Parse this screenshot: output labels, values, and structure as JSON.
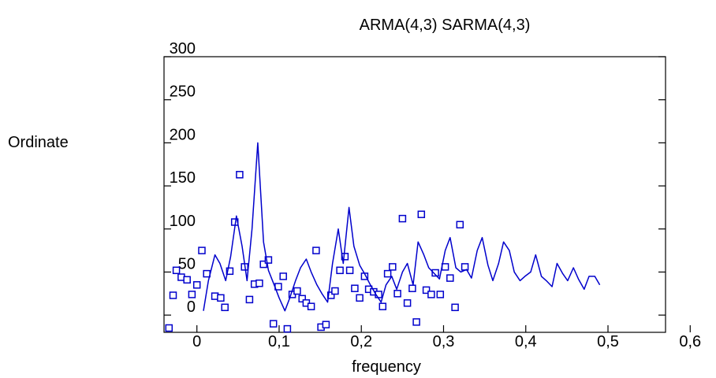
{
  "chart_data": {
    "type": "scatter",
    "title": "ARMA(4,3) SARMA(4,3)",
    "xlabel": "frequency",
    "ylabel": "Ordinate",
    "x_ticks": [
      0,
      0.1,
      0.2,
      0.3,
      0.4,
      0.5,
      0.6
    ],
    "x_tick_labels": [
      "0",
      "0,1",
      "0,2",
      "0,3",
      "0,4",
      "0,5",
      "0,6"
    ],
    "y_ticks": [
      0,
      50,
      100,
      150,
      200,
      250,
      300
    ],
    "y_tick_labels": [
      "0",
      "50",
      "100",
      "150",
      "200",
      "250",
      "300"
    ],
    "xlim": [
      -0.04,
      0.57
    ],
    "ylim": [
      -20,
      300
    ],
    "grid": false,
    "colors": {
      "series": "#0000cc",
      "axes": "#000000"
    },
    "series": [
      {
        "kind": "points",
        "marker": "open-square",
        "x": [
          -0.034,
          -0.029,
          -0.025,
          -0.019,
          -0.012,
          -0.006,
          0.0,
          0.006,
          0.012,
          0.022,
          0.029,
          0.034,
          0.04,
          0.046,
          0.052,
          0.058,
          0.064,
          0.07,
          0.076,
          0.081,
          0.087,
          0.093,
          0.099,
          0.105,
          0.11,
          0.116,
          0.122,
          0.128,
          0.133,
          0.139,
          0.145,
          0.151,
          0.157,
          0.163,
          0.168,
          0.174,
          0.18,
          0.186,
          0.192,
          0.198,
          0.204,
          0.209,
          0.215,
          0.221,
          0.226,
          0.232,
          0.238,
          0.244,
          0.25,
          0.256,
          0.262,
          0.267,
          0.273,
          0.279,
          0.285,
          0.29,
          0.296,
          0.302,
          0.308,
          0.314,
          0.32,
          0.326
        ],
        "y": [
          -15,
          23,
          52,
          44,
          41,
          24,
          35,
          75,
          48,
          22,
          20,
          9,
          51,
          108,
          163,
          56,
          18,
          36,
          37,
          59,
          64,
          -10,
          33,
          45,
          -16,
          24,
          28,
          19,
          14,
          10,
          75,
          -14,
          -11,
          23,
          28,
          52,
          68,
          52,
          31,
          20,
          45,
          30,
          27,
          24,
          10,
          48,
          56,
          25,
          112,
          14,
          31,
          -8,
          117,
          29,
          24,
          49,
          24,
          56,
          43,
          9,
          105,
          56
        ]
      },
      {
        "kind": "line",
        "x": [
          0.008,
          0.014,
          0.022,
          0.028,
          0.035,
          0.041,
          0.048,
          0.055,
          0.061,
          0.067,
          0.074,
          0.081,
          0.087,
          0.094,
          0.1,
          0.107,
          0.113,
          0.12,
          0.126,
          0.133,
          0.139,
          0.146,
          0.152,
          0.159,
          0.165,
          0.172,
          0.178,
          0.185,
          0.191,
          0.198,
          0.204,
          0.211,
          0.217,
          0.224,
          0.23,
          0.237,
          0.243,
          0.25,
          0.256,
          0.263,
          0.269,
          0.276,
          0.282,
          0.289,
          0.295,
          0.302,
          0.308,
          0.315,
          0.321,
          0.328,
          0.334,
          0.341,
          0.347,
          0.354,
          0.36,
          0.367,
          0.373,
          0.38,
          0.386,
          0.393,
          0.399,
          0.406,
          0.412,
          0.419,
          0.425,
          0.432,
          0.438,
          0.445,
          0.451,
          0.458,
          0.464,
          0.471,
          0.477,
          0.484,
          0.49
        ],
        "y": [
          5,
          40,
          70,
          60,
          40,
          68,
          115,
          80,
          40,
          100,
          200,
          85,
          52,
          35,
          20,
          5,
          20,
          40,
          55,
          65,
          50,
          35,
          25,
          15,
          60,
          100,
          60,
          125,
          80,
          58,
          48,
          35,
          25,
          15,
          35,
          45,
          30,
          50,
          60,
          35,
          85,
          70,
          55,
          48,
          42,
          75,
          90,
          55,
          50,
          53,
          43,
          75,
          90,
          58,
          40,
          60,
          85,
          75,
          50,
          40,
          45,
          50,
          70,
          45,
          40,
          33,
          60,
          48,
          40,
          55,
          42,
          30,
          45,
          45,
          35
        ]
      }
    ]
  }
}
